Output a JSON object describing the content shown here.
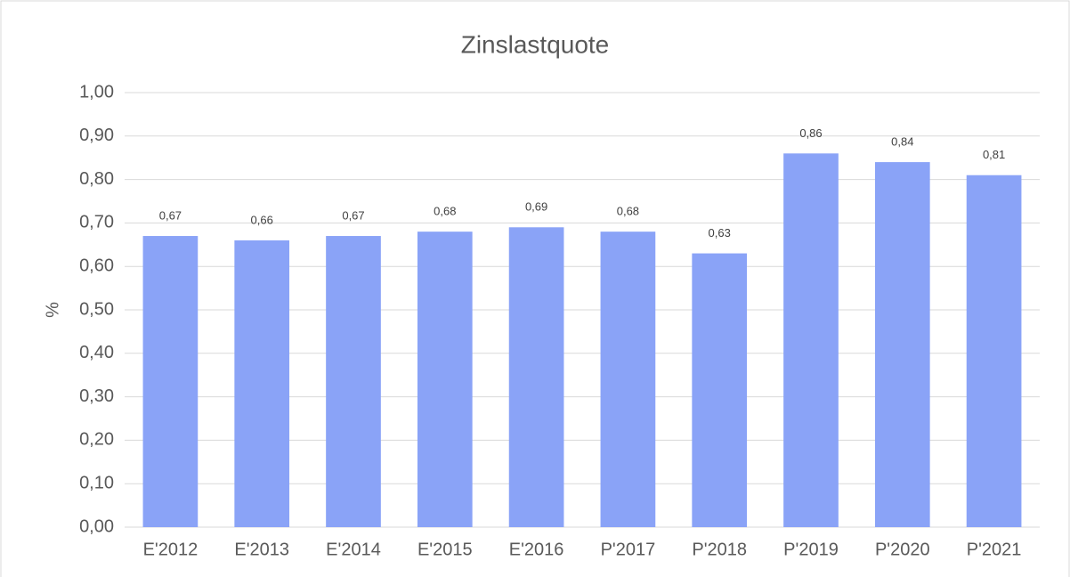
{
  "chart_data": {
    "type": "bar",
    "title": "Zinslastquote",
    "y_label": "%",
    "categories": [
      "E'2012",
      "E'2013",
      "E'2014",
      "E'2015",
      "E'2016",
      "P'2017",
      "P'2018",
      "P'2019",
      "P'2020",
      "P'2021"
    ],
    "values": [
      0.67,
      0.66,
      0.67,
      0.68,
      0.69,
      0.68,
      0.63,
      0.86,
      0.84,
      0.81
    ],
    "value_labels": [
      "0,67",
      "0,66",
      "0,67",
      "0,68",
      "0,69",
      "0,68",
      "0,63",
      "0,86",
      "0,84",
      "0,81"
    ],
    "color": "#8aa3f7",
    "ylim": [
      0,
      1
    ],
    "yticks": [
      {
        "value": 0,
        "label": "0,00"
      },
      {
        "value": 0.1,
        "label": "0,10"
      },
      {
        "value": 0.2,
        "label": "0,20"
      },
      {
        "value": 0.3,
        "label": "0,30"
      },
      {
        "value": 0.4,
        "label": "0,40"
      },
      {
        "value": 0.5,
        "label": "0,50"
      },
      {
        "value": 0.6,
        "label": "0,60"
      },
      {
        "value": 0.7,
        "label": "0,70"
      },
      {
        "value": 0.8,
        "label": "0,80"
      },
      {
        "value": 0.9,
        "label": "0,90"
      },
      {
        "value": 1,
        "label": "1,00"
      }
    ],
    "grid": true
  }
}
